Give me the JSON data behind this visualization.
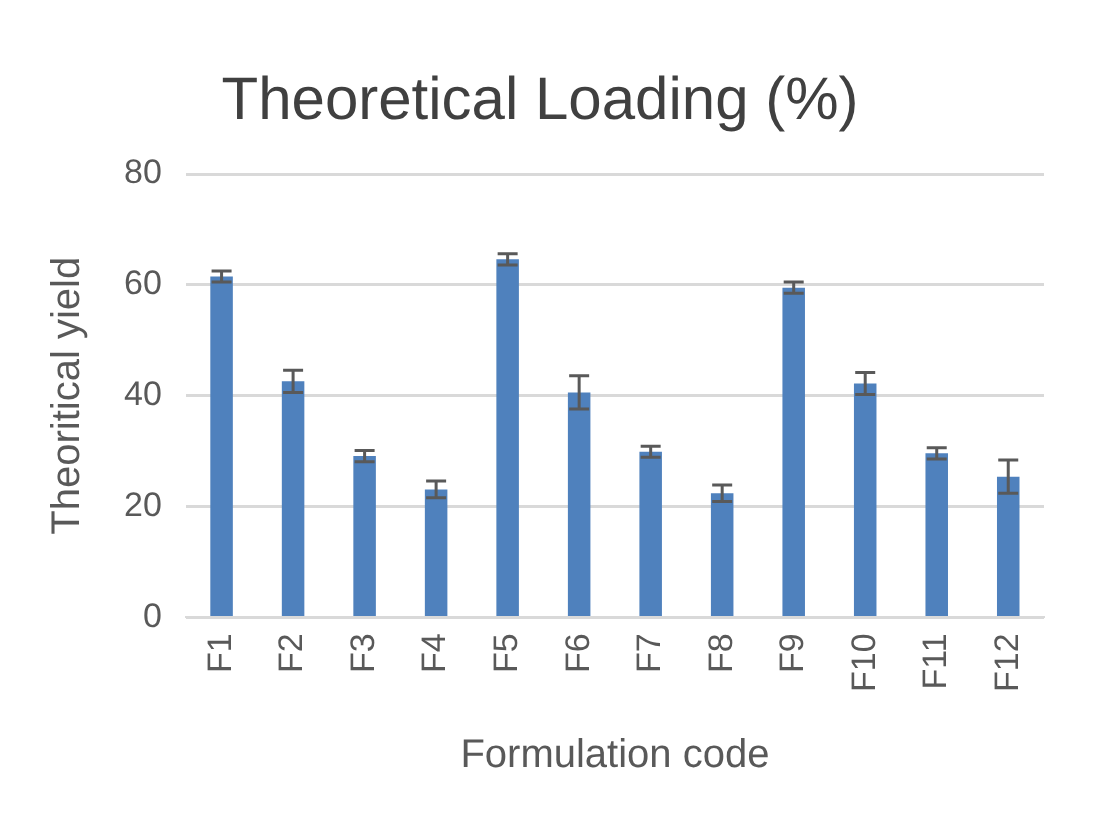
{
  "chart_data": {
    "type": "bar",
    "title": "Theoretical Loading (%)",
    "xlabel": "Formulation code",
    "ylabel": "Theoritical yield",
    "categories": [
      "F1",
      "F2",
      "F3",
      "F4",
      "F5",
      "F6",
      "F7",
      "F8",
      "F9",
      "F10",
      "F11",
      "F12"
    ],
    "values": [
      61.5,
      42.6,
      29.1,
      23.1,
      64.6,
      40.6,
      29.9,
      22.4,
      59.5,
      42.2,
      29.6,
      25.4
    ],
    "errors": [
      1,
      2,
      1,
      1.5,
      1,
      3,
      1,
      1.5,
      1,
      2,
      1,
      3
    ],
    "color": "#4f81bd",
    "ylim": [
      0,
      80
    ],
    "yticks": [
      0,
      20,
      40,
      60,
      80
    ],
    "grid": "y",
    "legend": false
  }
}
